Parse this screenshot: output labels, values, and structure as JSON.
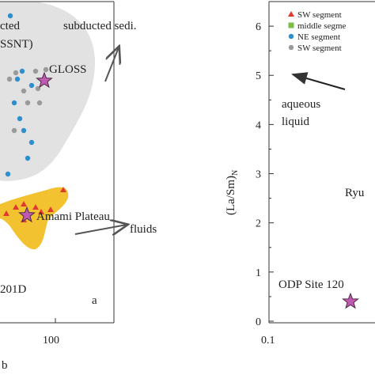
{
  "chart_data": [
    {
      "type": "scatter",
      "x_tick_labels": [
        "100"
      ],
      "x_axis_fragment": "b",
      "panel_letter": "a",
      "annotations": {
        "top_left_a": "cted",
        "top_left_b": "SSNT)",
        "subducted": "subducted sedi.",
        "gloss": "GLOSS",
        "amami": "Amami Plateau",
        "fluids": "fluids",
        "site": "201D"
      },
      "series": [
        {
          "name": "",
          "color": "#2e8fcf",
          "marker": "circle",
          "values": [
            [
              13,
              20
            ],
            [
              22,
              100
            ],
            [
              28,
              90
            ],
            [
              18,
              130
            ],
            [
              40,
              108
            ],
            [
              25,
              150
            ],
            [
              30,
              165
            ],
            [
              40,
              180
            ],
            [
              35,
              200
            ],
            [
              10,
              220
            ]
          ]
        },
        {
          "name": "",
          "color": "#9a9a9a",
          "marker": "circle",
          "values": [
            [
              20,
              92
            ],
            [
              45,
              90
            ],
            [
              48,
              112
            ],
            [
              58,
              88
            ],
            [
              12,
              100
            ],
            [
              30,
              115
            ],
            [
              35,
              130
            ],
            [
              50,
              130
            ],
            [
              18,
              165
            ]
          ]
        },
        {
          "name": "",
          "color": "#e03a2e",
          "marker": "triangle",
          "values": [
            [
              8,
              270
            ],
            [
              20,
              262
            ],
            [
              30,
              258
            ],
            [
              45,
              262
            ],
            [
              52,
              268
            ],
            [
              64,
              265
            ],
            [
              80,
              240
            ],
            [
              30,
              278
            ]
          ]
        },
        {
          "name": "",
          "color": "#c05ab0",
          "marker": "star",
          "values": [
            [
              56,
              102
            ],
            [
              34,
              272
            ]
          ]
        }
      ]
    },
    {
      "type": "scatter",
      "ylabel": "(La/Sm)N",
      "ylabel_main": "(La/Sm)",
      "ylabel_sub": "N",
      "y_ticks": [
        0,
        1,
        2,
        3,
        4,
        5,
        6
      ],
      "ylim": [
        0,
        6.5
      ],
      "x_tick_labels": [
        "0.1"
      ],
      "legend_position": "top",
      "legend": [
        {
          "label": "SW segment",
          "color": "#e03a2e",
          "marker": "triangle"
        },
        {
          "label": "middle segme",
          "color": "#7cc04a",
          "marker": "square"
        },
        {
          "label": "NE segment",
          "color": "#2e8fcf",
          "marker": "circle"
        },
        {
          "label": "SW segment",
          "color": "#9a9a9a",
          "marker": "circle"
        }
      ],
      "annotations": {
        "aqueous": "aqueous",
        "liquid": "liquid",
        "ryu": "Ryu",
        "odp": "ODP Site 120"
      },
      "points": [
        {
          "y": 0.4,
          "color": "#c05ab0",
          "marker": "star"
        }
      ]
    }
  ]
}
